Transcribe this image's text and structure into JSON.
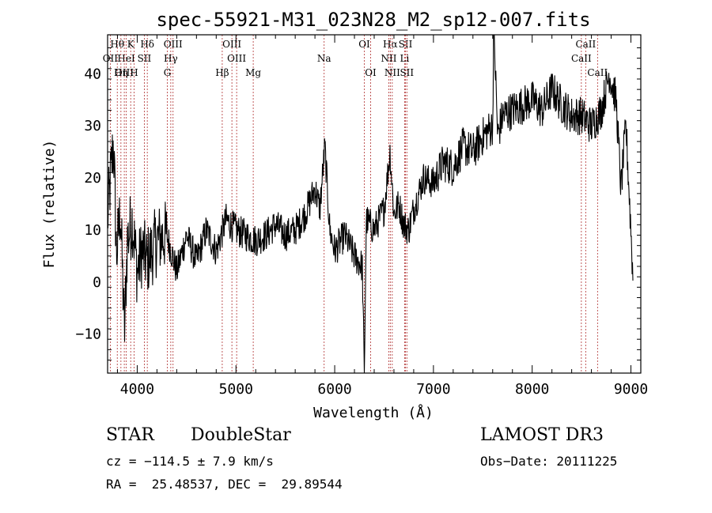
{
  "chart_data": {
    "type": "line",
    "title": "spec-55921-M31_023N28_M2_sp12-007.fits",
    "xlabel": "Wavelength (Å)",
    "ylabel": "Flux (relative)",
    "xlim": [
      3700,
      9100
    ],
    "ylim": [
      -17.5,
      47.5
    ],
    "xticks": [
      4000,
      5000,
      6000,
      7000,
      8000,
      9000
    ],
    "yticks": [
      -10,
      0,
      10,
      20,
      30,
      40
    ],
    "grid": false,
    "series": [
      {
        "name": "spectrum",
        "control_points": [
          [
            3700,
            12
          ],
          [
            3730,
            20
          ],
          [
            3760,
            27
          ],
          [
            3790,
            5
          ],
          [
            3830,
            14
          ],
          [
            3870,
            -10
          ],
          [
            3900,
            8
          ],
          [
            3950,
            12
          ],
          [
            4000,
            2
          ],
          [
            4050,
            6
          ],
          [
            4100,
            4
          ],
          [
            4200,
            8
          ],
          [
            4300,
            9
          ],
          [
            4400,
            2
          ],
          [
            4500,
            9
          ],
          [
            4600,
            4
          ],
          [
            4700,
            10
          ],
          [
            4800,
            6
          ],
          [
            4900,
            12
          ],
          [
            5000,
            10
          ],
          [
            5100,
            9
          ],
          [
            5200,
            8
          ],
          [
            5300,
            9
          ],
          [
            5400,
            11
          ],
          [
            5500,
            9
          ],
          [
            5600,
            10
          ],
          [
            5700,
            13
          ],
          [
            5800,
            18
          ],
          [
            5850,
            14
          ],
          [
            5900,
            26
          ],
          [
            5950,
            10
          ],
          [
            6000,
            6
          ],
          [
            6100,
            9
          ],
          [
            6200,
            5
          ],
          [
            6280,
            3
          ],
          [
            6300,
            -18
          ],
          [
            6320,
            12
          ],
          [
            6400,
            10
          ],
          [
            6500,
            14
          ],
          [
            6560,
            25
          ],
          [
            6600,
            13
          ],
          [
            6650,
            15
          ],
          [
            6700,
            11
          ],
          [
            6750,
            10
          ],
          [
            6800,
            14
          ],
          [
            6900,
            20
          ],
          [
            7000,
            19
          ],
          [
            7100,
            23
          ],
          [
            7200,
            22
          ],
          [
            7300,
            26
          ],
          [
            7400,
            25
          ],
          [
            7500,
            28
          ],
          [
            7600,
            30
          ],
          [
            7610,
            50
          ],
          [
            7650,
            28
          ],
          [
            7700,
            32
          ],
          [
            7800,
            33
          ],
          [
            7900,
            34
          ],
          [
            8000,
            35
          ],
          [
            8100,
            33
          ],
          [
            8200,
            37
          ],
          [
            8300,
            34
          ],
          [
            8400,
            32
          ],
          [
            8500,
            32
          ],
          [
            8600,
            30
          ],
          [
            8700,
            33
          ],
          [
            8780,
            40
          ],
          [
            8850,
            35
          ],
          [
            8900,
            18
          ],
          [
            8950,
            30
          ],
          [
            9000,
            10
          ],
          [
            9020,
            1
          ]
        ]
      }
    ],
    "spectral_lines": [
      {
        "label": "Hθ",
        "wavelength": 3798,
        "row": 1
      },
      {
        "label": "K",
        "wavelength": 3934,
        "row": 1
      },
      {
        "label": "Hδ",
        "wavelength": 4102,
        "row": 1
      },
      {
        "label": "OIII",
        "wavelength": 4363,
        "row": 1
      },
      {
        "label": "OIII",
        "wavelength": 4959,
        "row": 1
      },
      {
        "label": "OI",
        "wavelength": 6300,
        "row": 1
      },
      {
        "label": "Hα",
        "wavelength": 6563,
        "row": 1
      },
      {
        "label": "SII",
        "wavelength": 6717,
        "row": 1
      },
      {
        "label": "CaII",
        "wavelength": 8542,
        "row": 1
      },
      {
        "label": "OII",
        "wavelength": 3727,
        "row": 2
      },
      {
        "label": "HeI",
        "wavelength": 3889,
        "row": 2
      },
      {
        "label": "SII",
        "wavelength": 4072,
        "row": 2
      },
      {
        "label": "Hγ",
        "wavelength": 4340,
        "row": 2
      },
      {
        "label": "OIII",
        "wavelength": 5007,
        "row": 2
      },
      {
        "label": "Na",
        "wavelength": 5893,
        "row": 2
      },
      {
        "label": "NII",
        "wavelength": 6548,
        "row": 2
      },
      {
        "label": "Li",
        "wavelength": 6708,
        "row": 2
      },
      {
        "label": "CaII",
        "wavelength": 8498,
        "row": 2
      },
      {
        "label": "OIII",
        "wavelength": 3869,
        "row": 3
      },
      {
        "label": "Hη",
        "wavelength": 3835,
        "row": 3
      },
      {
        "label": "H",
        "wavelength": 3968,
        "row": 3
      },
      {
        "label": "G",
        "wavelength": 4305,
        "row": 3
      },
      {
        "label": "Hβ",
        "wavelength": 4861,
        "row": 3
      },
      {
        "label": "Mg",
        "wavelength": 5175,
        "row": 3
      },
      {
        "label": "OI",
        "wavelength": 6364,
        "row": 3
      },
      {
        "label": "NII",
        "wavelength": 6583,
        "row": 3
      },
      {
        "label": "SII",
        "wavelength": 6731,
        "row": 3
      },
      {
        "label": "CaII",
        "wavelength": 8662,
        "row": 3
      }
    ]
  },
  "footer": {
    "class_label": "STAR",
    "subclass": "DoubleStar",
    "survey": "LAMOST DR3",
    "cz": "cz = −114.5 ± 7.9 km/s",
    "obs_date": "Obs−Date: 20111225",
    "radec": "RA =  25.48537, DEC =  29.89544"
  }
}
